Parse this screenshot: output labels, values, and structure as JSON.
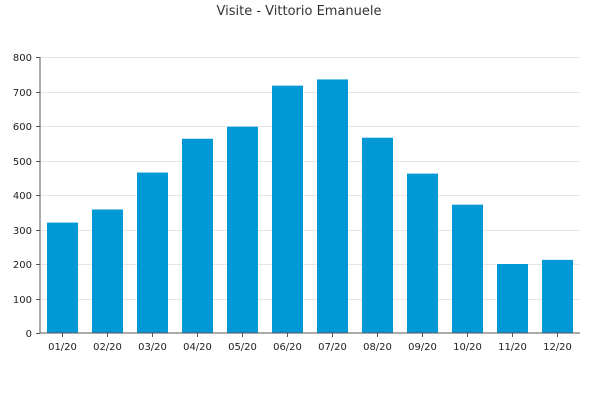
{
  "chart_data": {
    "type": "bar",
    "title": "Visite - Vittorio Emanuele",
    "xlabel": "",
    "ylabel": "",
    "categories": [
      "01/20",
      "02/20",
      "03/20",
      "04/20",
      "05/20",
      "06/20",
      "07/20",
      "08/20",
      "09/20",
      "10/20",
      "11/20",
      "12/20"
    ],
    "values": [
      320,
      358,
      465,
      563,
      598,
      717,
      735,
      566,
      462,
      372,
      200,
      212
    ],
    "ylim": [
      0,
      800
    ],
    "yticks": [
      0,
      100,
      200,
      300,
      400,
      500,
      600,
      700,
      800
    ],
    "grid": true,
    "bar_color": "#0099d6"
  }
}
